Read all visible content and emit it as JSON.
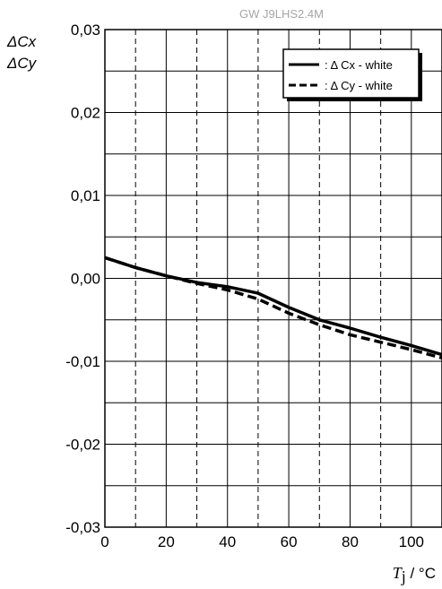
{
  "chart_data": {
    "type": "line",
    "title": "GW J9LHS2.4M",
    "ylabel_lines": [
      "ΔCx",
      "ΔCy"
    ],
    "xlabel_symbol": "T",
    "xlabel_subscript": "j",
    "xlabel_unit": " / °C",
    "xlim": [
      0,
      110
    ],
    "ylim": [
      -0.03,
      0.03
    ],
    "x_ticks": [
      0,
      20,
      40,
      60,
      80,
      100
    ],
    "x_tick_labels": [
      "0",
      "20",
      "40",
      "60",
      "80",
      "100"
    ],
    "y_ticks": [
      -0.03,
      -0.02,
      -0.01,
      0.0,
      0.01,
      0.02,
      0.03
    ],
    "y_tick_labels": [
      "-0,03",
      "-0,02",
      "-0,01",
      "0,00",
      "0,01",
      "0,02",
      "0,03"
    ],
    "grid": true,
    "legend_position": "top-right",
    "series": [
      {
        "name": ": Δ Cx - white",
        "style": "solid",
        "color": "#000000",
        "x": [
          0,
          10,
          20,
          30,
          40,
          50,
          60,
          70,
          80,
          90,
          100,
          110
        ],
        "y": [
          0.0025,
          0.0013,
          0.0003,
          -0.0005,
          -0.001,
          -0.0018,
          -0.0035,
          -0.005,
          -0.006,
          -0.0071,
          -0.0081,
          -0.0092
        ]
      },
      {
        "name": ": Δ Cy - white",
        "style": "dashed",
        "color": "#000000",
        "x": [
          0,
          10,
          20,
          30,
          40,
          50,
          60,
          70,
          80,
          90,
          100,
          110
        ],
        "y": [
          0.0025,
          0.0013,
          0.0003,
          -0.0006,
          -0.0014,
          -0.0025,
          -0.0042,
          -0.0056,
          -0.0068,
          -0.0077,
          -0.0086,
          -0.0096
        ]
      }
    ]
  }
}
